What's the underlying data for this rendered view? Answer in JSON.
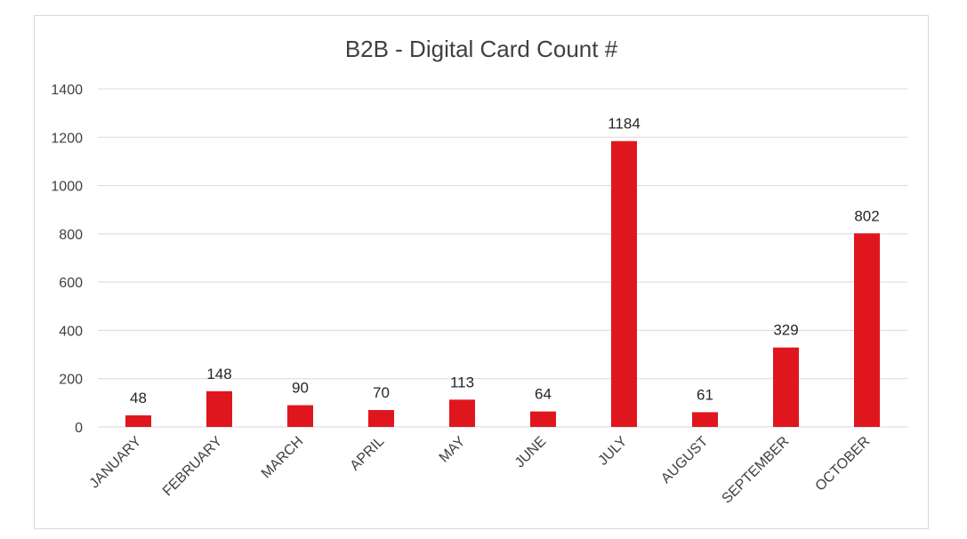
{
  "chart_data": {
    "type": "bar",
    "title": "B2B - Digital Card Count #",
    "xlabel": "",
    "ylabel": "",
    "categories": [
      "JANUARY",
      "FEBRUARY",
      "MARCH",
      "APRIL",
      "MAY",
      "JUNE",
      "JULY",
      "AUGUST",
      "SEPTEMBER",
      "OCTOBER"
    ],
    "values": [
      48,
      148,
      90,
      70,
      113,
      64,
      1184,
      61,
      329,
      802
    ],
    "ylim": [
      0,
      1400
    ],
    "yticks": [
      0,
      200,
      400,
      600,
      800,
      1000,
      1200,
      1400
    ],
    "grid": true,
    "legend": "none",
    "bar_color": "#e0161e",
    "grid_color": "#d9d9d9",
    "text_color": "#404040"
  }
}
